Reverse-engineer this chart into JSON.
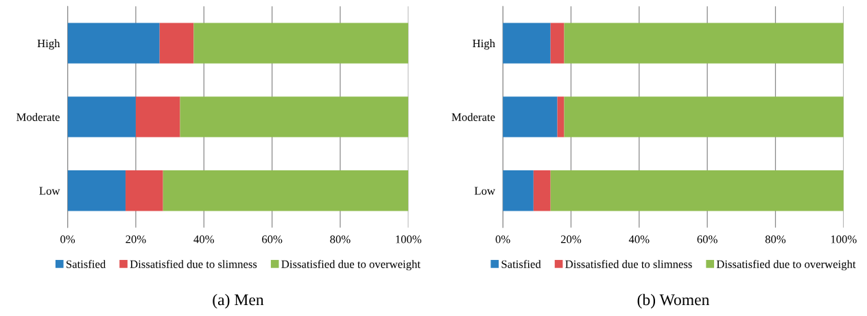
{
  "chart_data": [
    {
      "type": "bar",
      "orientation": "horizontal",
      "stacked": true,
      "title": "(a) Men",
      "categories": [
        "High",
        "Moderate",
        "Low"
      ],
      "series": [
        {
          "name": "Satisfied",
          "color": "#2a7fc0",
          "values": [
            27,
            20,
            17
          ]
        },
        {
          "name": "Dissatisfied due to slimness",
          "color": "#e05050",
          "values": [
            10,
            13,
            11
          ]
        },
        {
          "name": "Dissatisfied due to overweight",
          "color": "#8fbc50",
          "values": [
            63,
            67,
            72
          ]
        }
      ],
      "xlim": [
        0,
        100
      ],
      "xticks": [
        {
          "value": 0,
          "label": "0%"
        },
        {
          "value": 20,
          "label": "20%"
        },
        {
          "value": 40,
          "label": "40%"
        },
        {
          "value": 60,
          "label": "60%"
        },
        {
          "value": 80,
          "label": "80%"
        },
        {
          "value": 100,
          "label": "100%"
        }
      ],
      "grid": "x",
      "legend": "bottom"
    },
    {
      "type": "bar",
      "orientation": "horizontal",
      "stacked": true,
      "title": "(b) Women",
      "categories": [
        "High",
        "Moderate",
        "Low"
      ],
      "series": [
        {
          "name": "Satisfied",
          "color": "#2a7fc0",
          "values": [
            14,
            16,
            9
          ]
        },
        {
          "name": "Dissatisfied due to slimness",
          "color": "#e05050",
          "values": [
            4,
            2,
            5
          ]
        },
        {
          "name": "Dissatisfied due to overweight",
          "color": "#8fbc50",
          "values": [
            82,
            82,
            86
          ]
        }
      ],
      "xlim": [
        0,
        100
      ],
      "xticks": [
        {
          "value": 0,
          "label": "0%"
        },
        {
          "value": 20,
          "label": "20%"
        },
        {
          "value": 40,
          "label": "40%"
        },
        {
          "value": 60,
          "label": "60%"
        },
        {
          "value": 80,
          "label": "80%"
        },
        {
          "value": 100,
          "label": "100%"
        }
      ],
      "grid": "x",
      "legend": "bottom"
    }
  ]
}
